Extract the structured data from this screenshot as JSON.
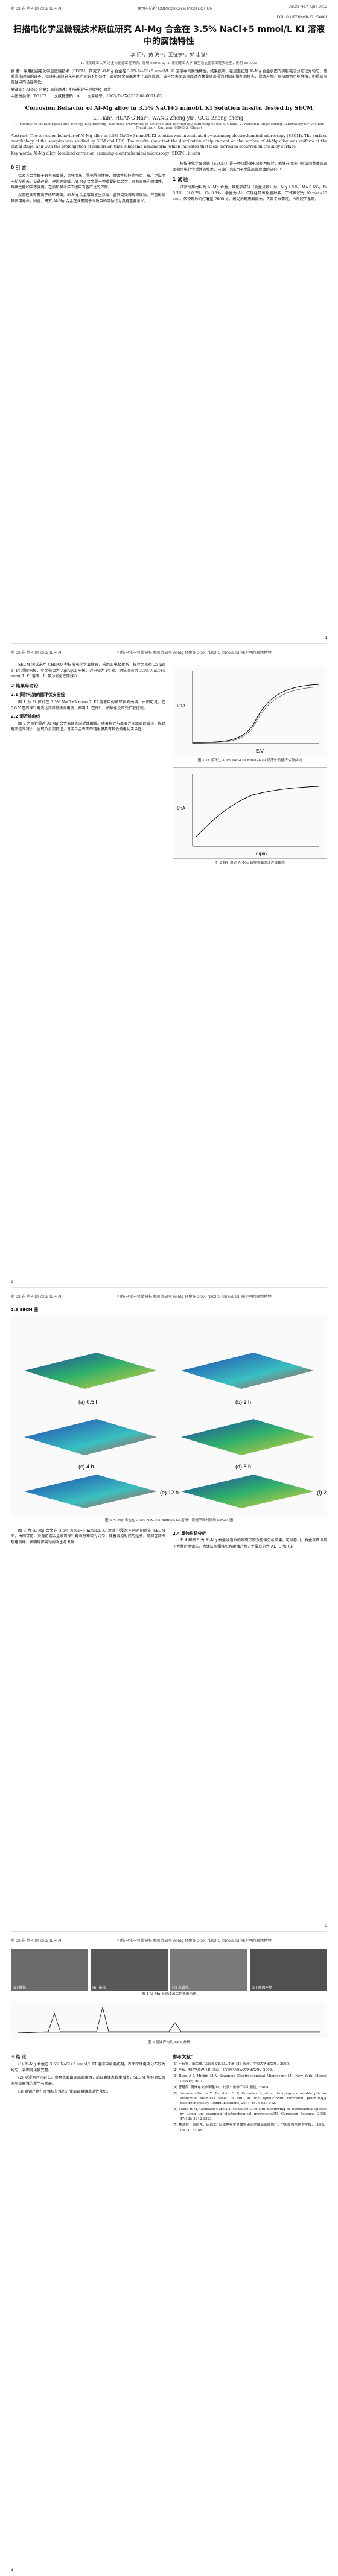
{
  "header": {
    "left": "第 33 卷 第 4 期 2012 年 4 月",
    "center": "腐蚀与防护 CORROSION & PROTECTION",
    "right": "Vol.33 No.4 April 2012",
    "doi": "DOI:10.11973/fsyfh-201204001"
  },
  "title_cn": "扫描电化学显微镜技术原位研究 Al-Mg 合金在 3.5% NaCl+5 mmol/L KI 溶液中的腐蚀特性",
  "authors_cn": "李 田¹，黄 海¹²，王征宇¹，郭 忠诚¹",
  "affiliation_cn": "(1. 昆明理工大学 冶金与能源工程学院，昆明 650093；2. 昆明理工大学 真空冶金国家工程实验室，昆明 650093)",
  "abstract_cn": "摘 要：采用扫描电化学显微镜技术（SECM）研究了 Al-Mg 合金在 3.5% NaCl+5 mmol/L KI 溶液中的腐蚀特性。结果表明，在浸泡初期 Al-Mg 合金表面的探针电流分布较为均匀，随着浸泡时间的延长，探针电流的分布出现明显的不均匀性，说明合金表面发生了局部腐蚀。该合金表面局部腐蚀点数量随着浸泡时间的增加而增多，腐蚀产物在局部腐蚀点处堆积，使得局部腐蚀点的活性降低。",
  "keywords_cn": "关键词：Al-Mg 合金；局部腐蚀；扫描电化学显微镜；原位",
  "classification": "中图分类号：TG172　　文献标志码：A　　文章编号：1005-748X(2012)04-0001-05",
  "title_en": "Corrosion Behavior of Al-Mg alloy in 3.5% NaCl+5 mmol/L KI Solution In-situ Tested by SECM",
  "authors_en": "LI Tian¹, HUANG Hai¹², WANG Zheng-yu¹, GUO Zhong-cheng¹",
  "affiliation_en": "(1. Faculty of Metallurgical and Energy Engineering, Kunming University of Science and Technology, Kunming 650093, China; 2. National Engineering Laboratory for Vacuum Metallurgy, Kunming 650093, China)",
  "abstract_en": "Abstract: The corrosion behavior of Al-Mg alloy in 3.5% NaCl+5 mmol/L KI solution was investigated by scanning electrochemical microscopy (SECM). The surface morphology of the samples was studied by SEM and EDS. The results show that the distribution of tip current on the surface of Al-Mg alloy was uniform at the initial stage, and with the prolongation of immersion time it became nonuniform, which indicated that local corrosion occurred on the alloy surface.",
  "keywords_en": "Key words: Al-Mg alloy; localized corrosion; scanning electrochemical microscopy (SECM); in-situ",
  "sections": {
    "intro": "0 引 言",
    "exp": "1 试 验",
    "res": "2 结果与讨论",
    "res1": "2.1 探针电流的循环伏安曲线",
    "res2": "2.2 渐近线曲线",
    "res3": "2.3 SECM 图",
    "res4": "2.4 腐蚀形貌分析",
    "concl": "3 结 论",
    "refs": "参考文献："
  },
  "body": {
    "p1": "铝及其合金由于具有密度低、比强度高、导电导热性好、耐蚀性较好等特点，被广泛应用于航空航天、交通运输、建筑等领域。Al-Mg 合金是一种重要的铝合金，具有良好的耐蚀性、焊接性能和中等强度，在船舶和海洋工程中有着广泛的应用。",
    "p2": "然而在含有氯离子的环境中，Al-Mg 合金容易发生点蚀、晶间腐蚀等局部腐蚀，严重影响其使用寿命。因此，研究 Al-Mg 合金在含氯离子介质中的腐蚀行为具有重要意义。",
    "p3": "扫描电化学显微镜（SECM）是一种以超微电极作为探针，能够在溶液中原位测量基底表面微区电化学活性的技术，已被广泛应用于金属局部腐蚀的研究中。",
    "p4": "试验所用材料为 Al-Mg 合金，其化学成分（质量分数）为：Mg 4.5%，Mn 0.6%，Fe 0.3%，Si 0.2%，Cu 0.1%，余量为 Al。试样经环氧树脂封装，工作面积为 10 mm×10 mm，依次用砂纸打磨至 2000 号，抛光后用丙酮除油，去离子水清洗，冷风吹干备用。",
    "p5": "SECM 测试采用 CHI900 型扫描电化学显微镜，采用四电极体系，探针为直径 25 μm 的 Pt 超微电极，参比电极为 Ag/AgCl 电极，对电极为 Pt 丝。测试溶液为 3.5% NaCl+5 mmol/L KI 溶液，I⁻ 作为氧化还原媒介。",
    "p6": "图 1 为 Pt 探针在 3.5% NaCl+5 mmol/L KI 溶液中的循环伏安曲线。由图可见，在 0.6 V 左右探针电流达到稳态极限电流，表明 I⁻ 在探针上的氧化反应受扩散控制。",
    "p7": "图 2 为探针逼近 Al-Mg 合金表面的渐近线曲线。随着探针与基底之间距离的减小，探针电流逐渐减小，呈现负反馈特征，说明合金表面的钝化膜具有较低的电化学活性。",
    "p8": "图 3 为 Al-Mg 合金在 3.5% NaCl+5 mmol/L KI 溶液中浸泡不同时间后的 SECM 图。由图可见，浸泡初期合金表面探针电流分布较为均匀，随着浸泡时间的延长，局部区域出现电流峰，表明局部腐蚀的发生与发展。",
    "p9": "图 4 和图 5 为 Al-Mg 合金浸泡后的表面形貌及能谱分析结果。可以看出，合金表面出现了大量的点蚀坑，点蚀坑周围堆积有腐蚀产物，主要成分为 Al、O 和 Cl。",
    "c1": "(1) Al-Mg 合金在 3.5% NaCl+5 mmol/L KI 溶液中浸泡初期，表面探针电流分布较为均匀，表面钝化膜完整。",
    "c2": "(2) 随浸泡时间延长，合金表面出现局部腐蚀，局部腐蚀点数量增多，SECM 能够原位检测局部腐蚀的发生与发展。",
    "c3": "(3) 腐蚀产物在点蚀坑处堆积，使局部腐蚀点活性降低。"
  },
  "captions": {
    "fig1": "图 1 Pt 探针在 3.5% NaCl+5 mmol/L KI 溶液中的循环伏安曲线",
    "fig2": "图 2 探针逼近 Al-Mg 合金表面的渐近线曲线",
    "fig3": "图 3 Al-Mg 合金在 3.5% NaCl+5 mmol/L KI 溶液中浸泡不同时间的 SECM 图",
    "fig4": "图 4 Al-Mg 合金浸泡后的表面形貌",
    "fig5": "图 5 腐蚀产物的 EDS 分析"
  },
  "figure_labels": {
    "f1x": "E/V",
    "f1y": "I/nA",
    "f2x": "d/μm",
    "f2y": "I/nA",
    "f3": [
      "(a) 0.5 h",
      "(b) 2 h",
      "(c) 4 h",
      "(d) 8 h",
      "(e) 12 h",
      "(f) 24 h"
    ],
    "f4": [
      "(a) 低倍",
      "(b) 高倍",
      "(c) 点蚀坑",
      "(d) 腐蚀产物"
    ]
  },
  "references": [
    "[1] 王祝堂，田荣璋. 铝合金及其加工手册[M]. 长沙：中南大学出版社，2000.",
    "[2] 李荻. 电化学原理[M]. 北京：北京航空航天大学出版社，2008.",
    "[3] Bard A J, Mirkin M V. Scanning Electrochemical Microscopy[M]. New York: Marcel Dekker, 2001.",
    "[4] 曹楚南. 腐蚀电化学原理[M]. 北京：化学工业出版社，2004.",
    "[5] Gonzalez-Garcia Y, Burstein G T, Gonzalez S, et al. Imaging metastable pits on austenitic stainless steel in situ at the open-circuit corrosion potential[J]. Electrochemistry Communications, 2004, 6(7): 637-642.",
    "[6] Souto R M, Gonzalez-Garcia Y, Gonzalez S. In situ monitoring of electroactive species by using the scanning electrochemical microscope[J]. Corrosion Science, 2005, 47(12): 3312-3323.",
    "[7] 林昌健，卓向东，田昭武. 扫描电化学显微镜研究金属局部腐蚀[J]. 中国腐蚀与防护学报，1995，15(2)：81-88."
  ],
  "pages": [
    "1",
    "2",
    "3",
    "4"
  ]
}
